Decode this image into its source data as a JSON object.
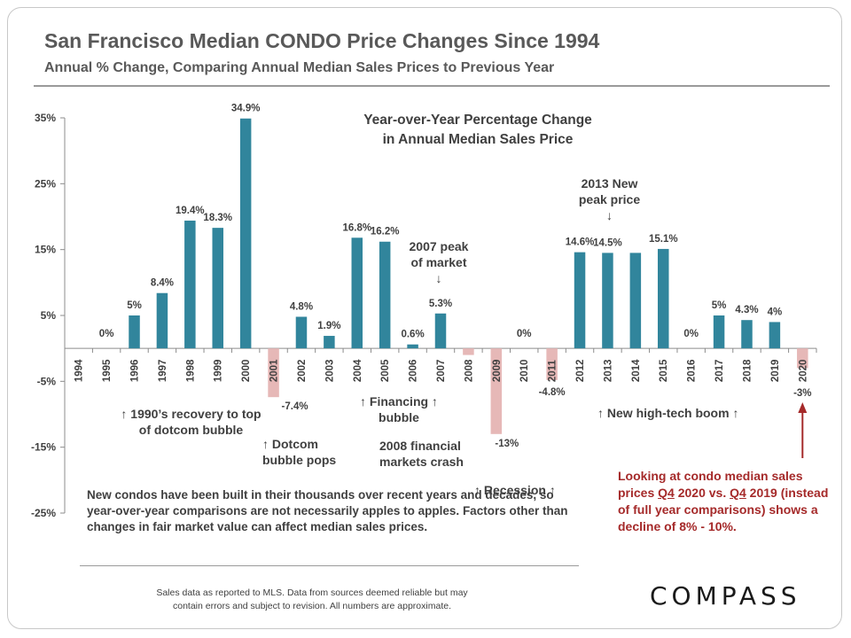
{
  "header": {
    "title": "San Francisco Median CONDO Price Changes Since 1994",
    "subtitle": "Annual % Change, Comparing Annual Median Sales Prices to Previous Year"
  },
  "chart_data": {
    "type": "bar",
    "title": "Year-over-Year Percentage Change in Annual Median Sales Price",
    "title_lines": [
      "Year-over-Year Percentage Change",
      "in Annual Median Sales Price"
    ],
    "categories": [
      "1994",
      "1995",
      "1996",
      "1997",
      "1998",
      "1999",
      "2000",
      "2001",
      "2002",
      "2003",
      "2004",
      "2005",
      "2006",
      "2007",
      "2008",
      "2009",
      "2010",
      "2011",
      "2012",
      "2013",
      "2014",
      "2015",
      "2016",
      "2017",
      "2018",
      "2019",
      "2020"
    ],
    "values": [
      null,
      0,
      5,
      8.4,
      19.4,
      18.3,
      34.9,
      -7.4,
      4.8,
      1.9,
      16.8,
      16.2,
      0.6,
      5.3,
      -1,
      -13,
      0,
      -4.8,
      14.6,
      14.5,
      14.5,
      15.1,
      0,
      5,
      4.3,
      4,
      -3
    ],
    "data_labels": [
      "",
      "0%",
      "5%",
      "8.4%",
      "19.4%",
      "18.3%",
      "34.9%",
      "-7.4%",
      "4.8%",
      "1.9%",
      "16.8%",
      "16.2%",
      "0.6%",
      "5.3%",
      "",
      "-13%",
      "0%",
      "-4.8%",
      "14.6%",
      "14.5%",
      "",
      "15.1%",
      "0%",
      "5%",
      "4.3%",
      "4%",
      "-3%"
    ],
    "y_ticks": [
      35,
      25,
      15,
      5,
      -5,
      -15,
      -25
    ],
    "y_tick_labels": [
      "35%",
      "25%",
      "15%",
      "5%",
      "-5%",
      "-15%",
      "-25%"
    ],
    "ylim": [
      -25,
      35
    ],
    "xlabel": "",
    "ylabel": "",
    "grid": false,
    "colors": {
      "positive": "#31859c",
      "negative": "#e6b8b7",
      "arrow": "#a52a2a"
    }
  },
  "annotations": {
    "recovery": "↑ 1990’s recovery to top of dotcom bubble",
    "dotcom": "↑ Dotcom bubble pops",
    "financing": "↑ Financing ↑ bubble",
    "peak2007_l1": "2007 peak",
    "peak2007_l2": "of market",
    "peak2007_arrow": "↓",
    "crash2008": "2008 financial markets crash",
    "recession": "↑  Recession  ↑",
    "peak2013_l1": "2013 New",
    "peak2013_l2": "peak price",
    "peak2013_arrow": "↓",
    "hightech": "↑ New high-tech boom ↑"
  },
  "notes": {
    "main": "New condos have been built in their thousands over recent years and decades, so year-over-year comparisons are not necessarily apples to apples. Factors other than changes in fair market value can affect median sales prices.",
    "q4_pre": "Looking at condo median sales prices ",
    "q4_a": "Q4",
    "q4_mid": " 2020 vs. ",
    "q4_b": "Q4",
    "q4_post": " 2019 (instead of full year comparisons) shows a decline of 8% - 10%."
  },
  "footer": {
    "line1": "Sales data as reported to MLS. Data from sources deemed reliable but may",
    "line2": "contain errors and subject to revision. All numbers are approximate."
  },
  "brand": {
    "logo": "COMPASS"
  }
}
